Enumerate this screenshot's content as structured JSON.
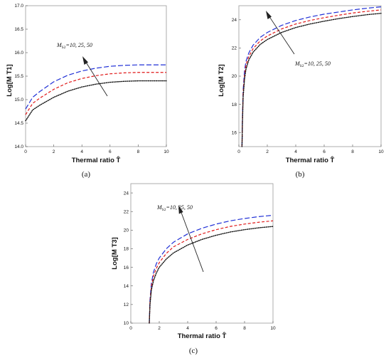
{
  "figure": {
    "background": "#ffffff",
    "series_colors": [
      "#1f2fd6",
      "#e01818",
      "#111111"
    ],
    "series_styles": [
      "long-dash",
      "dash",
      "dot"
    ]
  },
  "chart_data": [
    {
      "type": "line",
      "panel_label": "(a)",
      "xlabel": "Thermal ratio T̂",
      "ylabel": "Log[M T1]",
      "annotation": "M_S2 = 10, 25, 50",
      "annotation_sub": "S2",
      "annotation_values": "=10, 25, 50",
      "xlim": [
        0,
        10
      ],
      "ylim": [
        14.0,
        17.0
      ],
      "xticks": [
        0,
        2,
        4,
        6,
        8,
        10
      ],
      "yticks": [
        14.0,
        14.5,
        15.0,
        15.5,
        16.0,
        16.5,
        17.0
      ],
      "ytick_labels": [
        "14.0",
        "14.5",
        "15.0",
        "15.5",
        "16.0",
        "16.5",
        "17.0"
      ],
      "grid": false,
      "series": [
        {
          "x": [
            0,
            0.5,
            1,
            2,
            3,
            4,
            5,
            6,
            7,
            8,
            9,
            10
          ],
          "y": [
            14.8,
            15.05,
            15.17,
            15.38,
            15.52,
            15.61,
            15.67,
            15.71,
            15.73,
            15.74,
            15.74,
            15.74
          ]
        },
        {
          "x": [
            0,
            0.5,
            1,
            2,
            3,
            4,
            5,
            6,
            7,
            8,
            9,
            10
          ],
          "y": [
            14.68,
            14.92,
            15.03,
            15.22,
            15.36,
            15.45,
            15.51,
            15.55,
            15.57,
            15.58,
            15.58,
            15.58
          ]
        },
        {
          "x": [
            0,
            0.5,
            1,
            2,
            3,
            4,
            5,
            6,
            7,
            8,
            9,
            10
          ],
          "y": [
            14.55,
            14.78,
            14.88,
            15.05,
            15.18,
            15.27,
            15.33,
            15.37,
            15.39,
            15.4,
            15.4,
            15.4
          ]
        }
      ]
    },
    {
      "type": "line",
      "panel_label": "(b)",
      "xlabel": "Thermal ratio T̂",
      "ylabel": "Log[M T2]",
      "annotation": "M_S2 = 10, 25, 50",
      "annotation_sub": "S2",
      "annotation_values": "=10, 25, 50",
      "xlim": [
        0,
        10
      ],
      "ylim": [
        15,
        25
      ],
      "xticks": [
        0,
        2,
        4,
        6,
        8,
        10
      ],
      "yticks": [
        16,
        18,
        20,
        22,
        24
      ],
      "ytick_labels": [
        "16",
        "18",
        "20",
        "22",
        "24"
      ],
      "grid": false,
      "series": [
        {
          "x": [
            0.22,
            0.25,
            0.3,
            0.4,
            0.5,
            0.7,
            1,
            1.5,
            2,
            3,
            4,
            5,
            6,
            7,
            8,
            9,
            10
          ],
          "y": [
            15,
            17,
            19,
            20.4,
            21.05,
            21.65,
            22.2,
            22.75,
            23.1,
            23.6,
            23.95,
            24.2,
            24.4,
            24.55,
            24.7,
            24.82,
            24.92
          ]
        },
        {
          "x": [
            0.22,
            0.25,
            0.3,
            0.4,
            0.5,
            0.7,
            1,
            1.5,
            2,
            3,
            4,
            5,
            6,
            7,
            8,
            9,
            10
          ],
          "y": [
            15,
            16.8,
            18.8,
            20.1,
            20.8,
            21.4,
            21.95,
            22.5,
            22.85,
            23.35,
            23.7,
            23.95,
            24.15,
            24.32,
            24.48,
            24.6,
            24.7
          ]
        },
        {
          "x": [
            0.22,
            0.25,
            0.3,
            0.4,
            0.5,
            0.7,
            1,
            1.5,
            2,
            3,
            4,
            5,
            6,
            7,
            8,
            9,
            10
          ],
          "y": [
            15,
            16.6,
            18.5,
            19.8,
            20.5,
            21.15,
            21.7,
            22.25,
            22.6,
            23.1,
            23.45,
            23.7,
            23.9,
            24.08,
            24.23,
            24.36,
            24.46
          ]
        }
      ]
    },
    {
      "type": "line",
      "panel_label": "(c)",
      "xlabel": "Thermal ratio T̂",
      "ylabel": "Log[M T3]",
      "annotation": "M_S2 = 10, 25, 50",
      "annotation_sub": "S2",
      "annotation_values": "=10, 25, 50",
      "xlim": [
        0,
        10
      ],
      "ylim": [
        10,
        25
      ],
      "xticks": [
        0,
        2,
        4,
        6,
        8,
        10
      ],
      "yticks": [
        10,
        12,
        14,
        16,
        18,
        20,
        22,
        24
      ],
      "ytick_labels": [
        "10",
        "12",
        "14",
        "16",
        "18",
        "20",
        "22",
        "24"
      ],
      "grid": false,
      "series": [
        {
          "x": [
            1.3,
            1.35,
            1.45,
            1.6,
            1.8,
            2,
            2.5,
            3,
            4,
            5,
            6,
            7,
            8,
            9,
            10
          ],
          "y": [
            10,
            12.5,
            14.3,
            15.5,
            16.4,
            17.0,
            18.0,
            18.7,
            19.6,
            20.2,
            20.65,
            21.0,
            21.25,
            21.45,
            21.6
          ]
        },
        {
          "x": [
            1.3,
            1.35,
            1.45,
            1.6,
            1.8,
            2,
            2.5,
            3,
            4,
            5,
            6,
            7,
            8,
            9,
            10
          ],
          "y": [
            10,
            12.3,
            14.0,
            15.1,
            15.9,
            16.5,
            17.5,
            18.2,
            19.0,
            19.6,
            20.05,
            20.4,
            20.65,
            20.85,
            21.0
          ]
        },
        {
          "x": [
            1.3,
            1.35,
            1.45,
            1.6,
            1.8,
            2,
            2.5,
            3,
            4,
            5,
            6,
            7,
            8,
            9,
            10
          ],
          "y": [
            10,
            12.0,
            13.6,
            14.6,
            15.4,
            16.0,
            16.9,
            17.55,
            18.4,
            19.0,
            19.45,
            19.8,
            20.05,
            20.25,
            20.4
          ]
        }
      ]
    }
  ]
}
